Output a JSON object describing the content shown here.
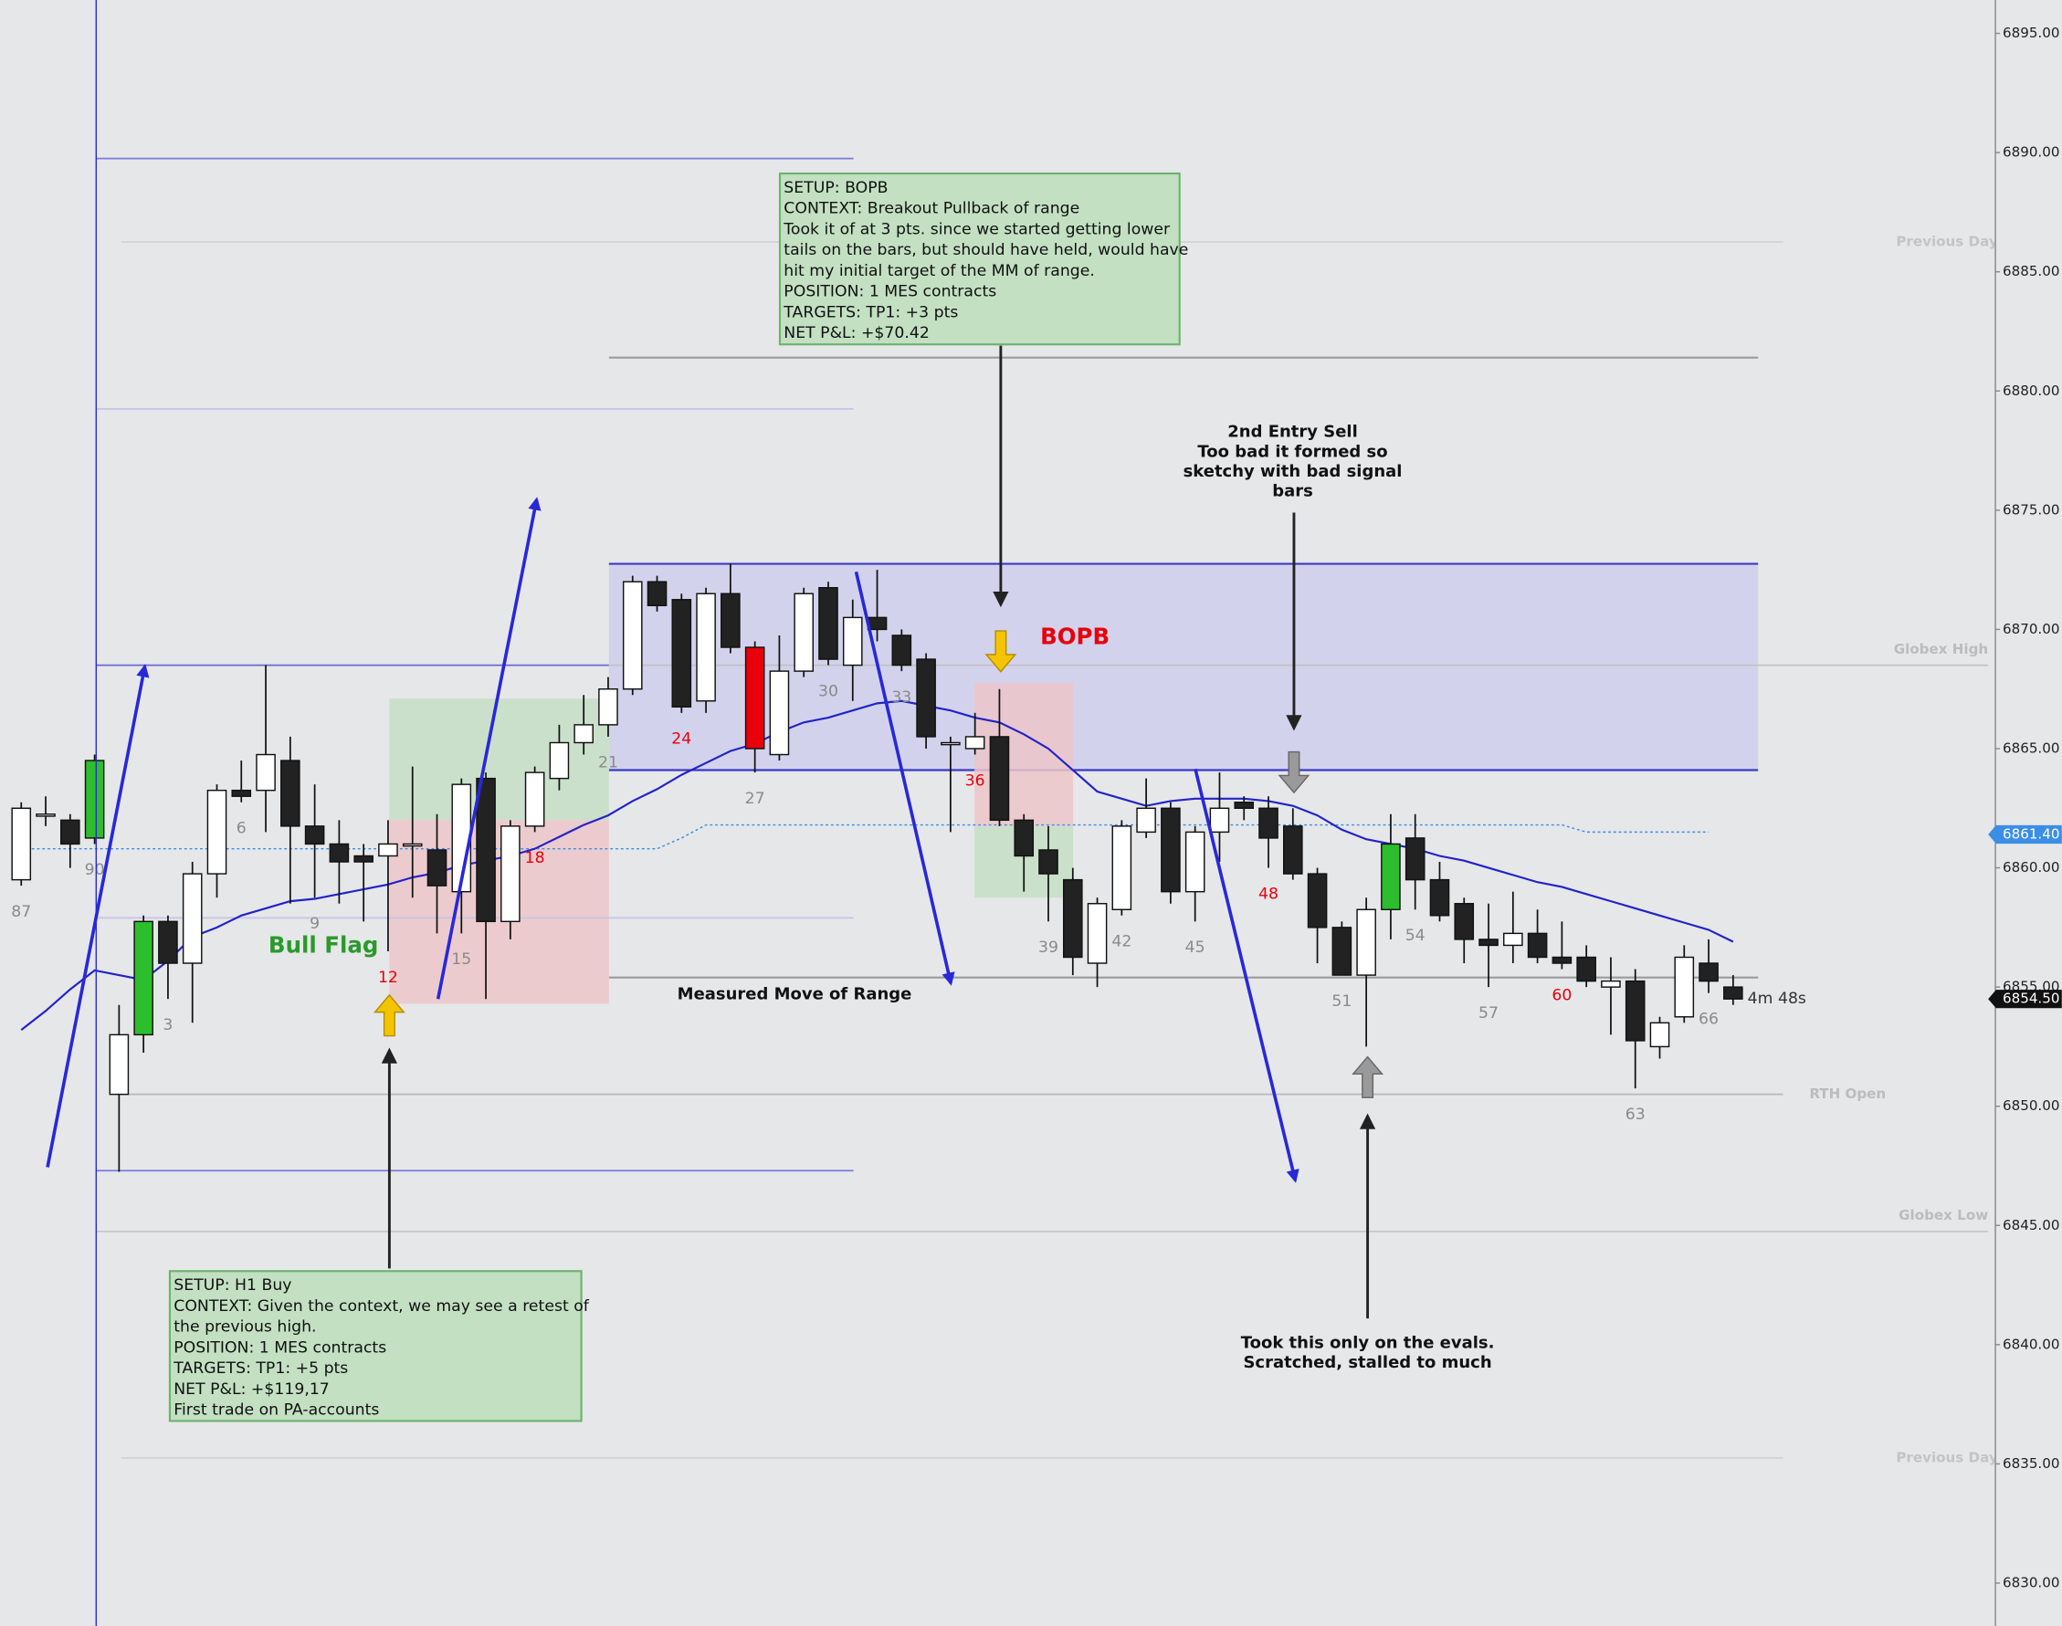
{
  "chart_data": {
    "type": "candlestick",
    "categories": [
      "87",
      null,
      null,
      "90",
      null,
      null,
      "3",
      null,
      null,
      "6",
      null,
      null,
      "9",
      null,
      null,
      "12",
      null,
      null,
      "15",
      null,
      null,
      "18",
      null,
      null,
      "21",
      null,
      null,
      "24",
      null,
      null,
      "27",
      null,
      null,
      "30",
      null,
      null,
      "33",
      null,
      null,
      "36",
      null,
      null,
      "39",
      null,
      null,
      "42",
      null,
      null,
      "45",
      null,
      null,
      "48",
      null,
      null,
      "51",
      null,
      null,
      "54",
      null,
      null,
      "57",
      null,
      null,
      "60",
      null,
      null,
      "63",
      null,
      null,
      "66",
      null
    ],
    "category_colors": [
      "#8a8a8a",
      null,
      null,
      "#8a8a8a",
      null,
      null,
      "#8a8a8a",
      null,
      null,
      "#8a8a8a",
      null,
      null,
      "#8a8a8a",
      null,
      null,
      "#e8000b",
      null,
      null,
      "#8a8a8a",
      null,
      null,
      "#e8000b",
      null,
      null,
      "#8a8a8a",
      null,
      null,
      "#e8000b",
      null,
      null,
      "#8a8a8a",
      null,
      null,
      "#8a8a8a",
      null,
      null,
      "#8a8a8a",
      null,
      null,
      "#e8000b",
      null,
      null,
      "#8a8a8a",
      null,
      null,
      "#8a8a8a",
      null,
      null,
      "#8a8a8a",
      null,
      null,
      "#e8000b",
      null,
      null,
      "#8a8a8a",
      null,
      null,
      "#8a8a8a",
      null,
      null,
      "#8a8a8a",
      null,
      null,
      "#e8000b",
      null,
      null,
      "#8a8a8a",
      null,
      null,
      "#8a8a8a",
      null
    ],
    "open": [
      6859.5,
      6862.25,
      6862,
      6861.25,
      6850.5,
      6853,
      6857.75,
      6856,
      6859.75,
      6863.25,
      6863.25,
      6864.5,
      6861.75,
      6861,
      6860.5,
      6860.5,
      6861,
      6860.75,
      6859,
      6863.75,
      6857.75,
      6861.75,
      6863.75,
      6865.25,
      6866,
      6867.5,
      6872,
      6871.25,
      6867,
      6871.5,
      6869.25,
      6864.75,
      6868.25,
      6871.75,
      6868.5,
      6870.5,
      6869.75,
      6868.75,
      6865.25,
      6865,
      6865.5,
      6862,
      6860.75,
      6859.5,
      6856,
      6858.25,
      6861.5,
      6862.5,
      6859,
      6861.5,
      6862.75,
      6862.5,
      6861.75,
      6859.75,
      6857.5,
      6855.5,
      6858.25,
      6861.25,
      6859.5,
      6858.5,
      6857,
      6856.75,
      6857.25,
      6856.25,
      6856.25,
      6855,
      6855.25,
      6852.5,
      6853.75,
      6856,
      6855
    ],
    "high": [
      6862.75,
      6863,
      6862.25,
      6864.75,
      6854.25,
      6858,
      6858,
      6860.25,
      6863.5,
      6864.5,
      6868.5,
      6865.5,
      6863.5,
      6862,
      6861,
      6862,
      6864.25,
      6862.25,
      6863.75,
      6864,
      6862,
      6864.25,
      6866,
      6867.25,
      6868,
      6872.25,
      6872.25,
      6871.5,
      6871.75,
      6872.75,
      6869.5,
      6869.75,
      6871.75,
      6872,
      6871.25,
      6872.5,
      6870,
      6869,
      6865.5,
      6866.5,
      6867.5,
      6862.25,
      6861.75,
      6860,
      6858.75,
      6862,
      6863.75,
      6862.75,
      6861.75,
      6864,
      6863,
      6863,
      6862.5,
      6860,
      6857.75,
      6858.75,
      6862.25,
      6862.25,
      6860.25,
      6858.75,
      6858.5,
      6859,
      6858.25,
      6857.75,
      6856.75,
      6856.25,
      6855.75,
      6853.75,
      6856.75,
      6857,
      6855.5
    ],
    "low": [
      6859.25,
      6861.75,
      6860,
      6861,
      6847.25,
      6852.25,
      6854.5,
      6853.5,
      6858.75,
      6862.75,
      6861.5,
      6858.5,
      6858.75,
      6858.5,
      6857.75,
      6856.5,
      6858.75,
      6857.25,
      6857.25,
      6854.5,
      6857,
      6861.5,
      6863.25,
      6864.75,
      6865.5,
      6867.25,
      6870.75,
      6866.5,
      6866.5,
      6869,
      6864,
      6864.5,
      6868,
      6868.5,
      6867,
      6869.5,
      6868.25,
      6865,
      6861.5,
      6864.75,
      6861.75,
      6859,
      6857.75,
      6855.5,
      6855,
      6858,
      6861.25,
      6858.5,
      6857.75,
      6860.25,
      6862,
      6860,
      6859.5,
      6856,
      6855.5,
      6852.5,
      6857,
      6858.25,
      6857.75,
      6856,
      6855,
      6856,
      6856,
      6855.75,
      6855,
      6853,
      6850.75,
      6852,
      6853.5,
      6854.75,
      6854.25
    ],
    "close": [
      6862.5,
      6862.25,
      6861,
      6864.5,
      6853,
      6857.75,
      6856,
      6859.75,
      6863.25,
      6863,
      6864.75,
      6861.75,
      6861,
      6860.25,
      6860.25,
      6861,
      6861,
      6859.25,
      6863.5,
      6857.75,
      6861.75,
      6864,
      6865.25,
      6866,
      6867.5,
      6872,
      6871,
      6866.75,
      6871.5,
      6869.25,
      6865,
      6868.25,
      6871.5,
      6868.75,
      6870.5,
      6870,
      6868.5,
      6865.5,
      6865.25,
      6865.5,
      6862,
      6860.5,
      6859.75,
      6856.25,
      6858.5,
      6861.75,
      6862.5,
      6859,
      6861.5,
      6862.5,
      6862.5,
      6861.25,
      6859.75,
      6857.5,
      6855.5,
      6858.25,
      6861,
      6859.5,
      6858,
      6857,
      6856.75,
      6857.25,
      6856.25,
      6856,
      6855.25,
      6855.25,
      6852.75,
      6853.5,
      6856.25,
      6855.25,
      6854.5
    ],
    "up_color": "#ffffff",
    "down_color": "#222222",
    "candle_colors": [
      null,
      null,
      null,
      "#2dbe2d",
      null,
      "#2dbe2d",
      null,
      null,
      null,
      null,
      null,
      null,
      null,
      null,
      null,
      null,
      null,
      null,
      null,
      null,
      null,
      null,
      null,
      null,
      null,
      null,
      null,
      null,
      null,
      null,
      "#e8000b",
      null,
      null,
      null,
      null,
      null,
      null,
      null,
      null,
      null,
      null,
      null,
      null,
      null,
      null,
      null,
      null,
      null,
      null,
      null,
      null,
      null,
      null,
      null,
      null,
      null,
      "#2dbe2d",
      null,
      null,
      null,
      null,
      null,
      null,
      null,
      null,
      null,
      null,
      null,
      null,
      null,
      null
    ],
    "ma": {
      "color": "#2323c8",
      "values": [
        6853.2,
        6854.0,
        6854.9,
        6855.7,
        6855.5,
        6855.3,
        6856.1,
        6857.1,
        6857.5,
        6858.0,
        6858.3,
        6858.6,
        6858.7,
        6858.9,
        6859.1,
        6859.3,
        6859.6,
        6859.8,
        6860.1,
        6860.3,
        6860.5,
        6860.8,
        6861.3,
        6861.8,
        6862.2,
        6862.8,
        6863.3,
        6863.9,
        6864.4,
        6864.9,
        6865.2,
        6865.7,
        6866.1,
        6866.3,
        6866.6,
        6866.9,
        6867.0,
        6866.8,
        6866.6,
        6866.3,
        6866.1,
        6865.6,
        6865.0,
        6864.1,
        6863.2,
        6862.9,
        6862.6,
        6862.8,
        6862.9,
        6862.9,
        6862.9,
        6862.8,
        6862.6,
        6862.2,
        6861.6,
        6861.2,
        6861.0,
        6860.8,
        6860.5,
        6860.3,
        6860.0,
        6859.7,
        6859.4,
        6859.2,
        6858.9,
        6858.6,
        6858.3,
        6858.0,
        6857.7,
        6857.4,
        6856.9
      ]
    },
    "signal_line": {
      "color": "#3a8ee6",
      "values": [
        6860.8,
        6860.8,
        6860.8,
        6860.8,
        6860.8,
        6860.8,
        6860.8,
        6860.8,
        6860.8,
        6860.8,
        6860.8,
        6860.8,
        6860.8,
        6860.8,
        6860.8,
        6860.8,
        6860.8,
        6860.8,
        6860.8,
        6860.8,
        6860.8,
        6860.8,
        6860.8,
        6860.8,
        6860.8,
        6860.8,
        6860.8,
        6861.25,
        6861.8,
        6861.8,
        6861.8,
        6861.8,
        6861.8,
        6861.8,
        6861.8,
        6861.8,
        6861.8,
        6861.8,
        6861.8,
        6861.8,
        6861.8,
        6861.8,
        6861.8,
        6861.8,
        6861.8,
        6861.8,
        6861.8,
        6861.8,
        6861.8,
        6861.8,
        6861.8,
        6861.8,
        6861.8,
        6861.8,
        6861.8,
        6861.8,
        6861.8,
        6861.8,
        6861.8,
        6861.8,
        6861.8,
        6861.8,
        6861.8,
        6861.8,
        6861.5,
        6861.5,
        6861.5,
        6861.5,
        6861.5,
        6861.5,
        null
      ]
    },
    "ylim": [
      6828.2,
      6896.4
    ],
    "yticks": [
      {
        "value": 6830,
        "label": "6830.00"
      },
      {
        "value": 6835,
        "label": "6835.00"
      },
      {
        "value": 6840,
        "label": "6840.00"
      },
      {
        "value": 6845,
        "label": "6845.00"
      },
      {
        "value": 6850,
        "label": "6850.00"
      },
      {
        "value": 6855,
        "label": "6855.00"
      },
      {
        "value": 6860,
        "label": "6860.00"
      },
      {
        "value": 6865,
        "label": "6865.00"
      },
      {
        "value": 6870,
        "label": "6870.00"
      },
      {
        "value": 6875,
        "label": "6875.00"
      },
      {
        "value": 6880,
        "label": "6880.00"
      },
      {
        "value": 6885,
        "label": "6885.00"
      },
      {
        "value": 6890,
        "label": "6890.00"
      },
      {
        "value": 6895,
        "label": "6895.00"
      }
    ],
    "levels": [
      {
        "value": 6889.75,
        "color": "#7b7bd6"
      },
      {
        "value": 6879.25,
        "color": "#c4c4e6"
      },
      {
        "value": 6857.9,
        "color": "#c4c4e6"
      },
      {
        "value": 6847.3,
        "color": "#7b7bd6"
      },
      {
        "value": 6868.5,
        "color": "#6a6ad0"
      },
      {
        "value": 6881.4,
        "color": "#9a9a9a"
      },
      {
        "value": 6855.4,
        "color": "#9a9a9a",
        "label": "Measured Move of Range"
      },
      {
        "value": 6868.5,
        "color": "#c2c2c2",
        "label": "Globex High"
      },
      {
        "value": 6850.5,
        "color": "#b8b8b8",
        "label": "RTH Open"
      },
      {
        "value": 6844.75,
        "color": "#c6c6c6",
        "label": "Globex Low"
      },
      {
        "value": 6886.25,
        "color": "#d2d2d2",
        "label": "Previous Day H"
      },
      {
        "value": 6835.25,
        "color": "#d2d2d2",
        "label": "Previous Day L"
      }
    ],
    "zones": [
      {
        "top": 6872.75,
        "bottom": 6864.1,
        "color": "#c9c9ec"
      },
      {
        "top": 6867.1,
        "bottom": 6862.0,
        "color": "#c4dec4"
      },
      {
        "top": 6862.0,
        "bottom": 6854.3,
        "color": "#ecc6c9"
      },
      {
        "top": 6867.75,
        "bottom": 6861.75,
        "color": "#ecc6c9"
      },
      {
        "top": 6861.75,
        "bottom": 6858.75,
        "color": "#c4dec4"
      }
    ],
    "price_tags": [
      {
        "value": 6861.4,
        "label": "6861.40",
        "color": "#3a8ee6"
      },
      {
        "value": 6854.5,
        "label": "6854.50",
        "color": "#111111"
      }
    ],
    "timer": "4m 48s",
    "notes": [
      {
        "lines": [
          "SETUP: BOPB",
          "CONTEXT: Breakout Pullback of range",
          "Took it of at 3 pts. since we started getting lower",
          "tails on the bars, but should have held, would have",
          "hit my initial  target of the MM of range.",
          "POSITION: 1 MES contracts",
          "TARGETS: TP1: +3 pts",
          "NET P&L: +$70.42"
        ]
      },
      {
        "lines": [
          "SETUP: H1 Buy",
          "CONTEXT:  Given the context, we may see a retest of",
          "the previous high.",
          "POSITION: 1 MES contracts",
          "TARGETS: TP1: +5 pts",
          "NET P&L: +$119,17",
          "First trade on PA-accounts"
        ]
      }
    ],
    "texts": [
      {
        "lines": [
          "BOPB"
        ],
        "color": "#e8000b"
      },
      {
        "lines": [
          "Bull Flag"
        ],
        "color": "#2a9a2a"
      },
      {
        "lines": [
          "2nd Entry Sell",
          "Too bad it formed so",
          "sketchy with bad signal",
          "bars"
        ],
        "color": "#111111"
      },
      {
        "lines": [
          "Took this only on the evals.",
          "Scratched, stalled to much"
        ],
        "color": "#111111"
      }
    ]
  }
}
